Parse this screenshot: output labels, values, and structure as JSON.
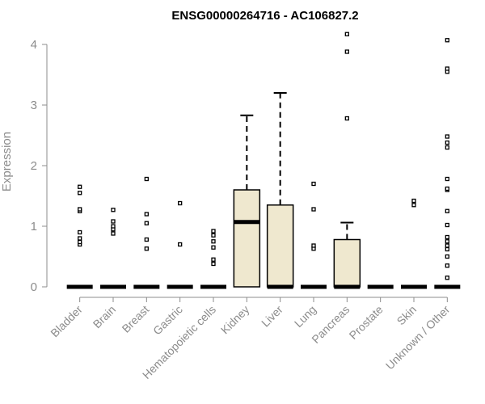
{
  "chart_data": {
    "type": "box",
    "title": "ENSG00000264716 - AC106827.2",
    "xlabel": "",
    "ylabel": "Expression",
    "ylim": [
      0,
      4.2
    ],
    "yticks": [
      0,
      1,
      2,
      3,
      4
    ],
    "grid": false,
    "box_fill": "#efe8cf",
    "categories": [
      "Bladder",
      "Brain",
      "Breast",
      "Gastric",
      "Hematopoietic cells",
      "Kidney",
      "Liver",
      "Lung",
      "Pancreas",
      "Prostate",
      "Skin",
      "Unknown / Other"
    ],
    "boxes": [
      {
        "q1": 0,
        "median": 0,
        "q3": 0,
        "whisker_low": 0,
        "whisker_high": 0,
        "outliers": [
          0.7,
          0.74,
          0.8,
          0.9,
          1.25,
          1.28,
          1.55,
          1.65
        ]
      },
      {
        "q1": 0,
        "median": 0,
        "q3": 0,
        "whisker_low": 0,
        "whisker_high": 0,
        "outliers": [
          0.88,
          0.95,
          1.0,
          1.08,
          1.27
        ]
      },
      {
        "q1": 0,
        "median": 0,
        "q3": 0,
        "whisker_low": 0,
        "whisker_high": 0,
        "outliers": [
          0.63,
          0.78,
          1.05,
          1.2,
          1.78
        ]
      },
      {
        "q1": 0,
        "median": 0,
        "q3": 0,
        "whisker_low": 0,
        "whisker_high": 0,
        "outliers": [
          0.7,
          1.38
        ]
      },
      {
        "q1": 0,
        "median": 0,
        "q3": 0,
        "whisker_low": 0,
        "whisker_high": 0,
        "outliers": [
          0.38,
          0.45,
          0.65,
          0.75,
          0.85,
          0.92
        ]
      },
      {
        "q1": 0,
        "median": 1.07,
        "q3": 1.6,
        "whisker_low": 0,
        "whisker_high": 2.83,
        "outliers": []
      },
      {
        "q1": 0,
        "median": 0,
        "q3": 1.35,
        "whisker_low": 0,
        "whisker_high": 3.2,
        "outliers": []
      },
      {
        "q1": 0,
        "median": 0,
        "q3": 0,
        "whisker_low": 0,
        "whisker_high": 0,
        "outliers": [
          0.63,
          0.68,
          1.28,
          1.7
        ]
      },
      {
        "q1": 0,
        "median": 0,
        "q3": 0.78,
        "whisker_low": 0,
        "whisker_high": 1.06,
        "outliers": [
          2.78,
          3.88,
          4.17
        ]
      },
      {
        "q1": 0,
        "median": 0,
        "q3": 0,
        "whisker_low": 0,
        "whisker_high": 0,
        "outliers": []
      },
      {
        "q1": 0,
        "median": 0,
        "q3": 0,
        "whisker_low": 0,
        "whisker_high": 0,
        "outliers": [
          1.35,
          1.42
        ]
      },
      {
        "q1": 0,
        "median": 0,
        "q3": 0,
        "whisker_low": 0,
        "whisker_high": 0,
        "outliers": [
          0.15,
          0.35,
          0.5,
          0.62,
          0.68,
          0.75,
          0.82,
          1.02,
          1.25,
          1.6,
          1.62,
          1.78,
          2.3,
          2.38,
          2.48,
          3.55,
          3.6,
          4.07
        ]
      }
    ]
  }
}
